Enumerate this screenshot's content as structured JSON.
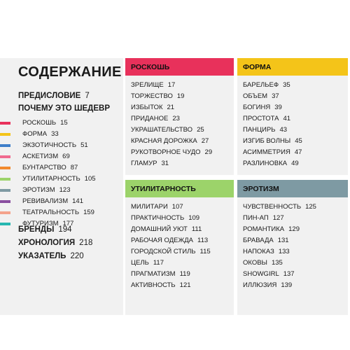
{
  "contents": {
    "title": "СОДЕРЖАНИЕ",
    "entries": [
      {
        "label": "ПРЕДИСЛОВИЕ",
        "page": "7",
        "type": "main"
      },
      {
        "label": "ПОЧЕМУ ЭТО ШЕДЕВР",
        "page": "",
        "type": "main"
      },
      {
        "label": "РОСКОШЬ",
        "page": "15",
        "type": "sub",
        "color": "#e8315b"
      },
      {
        "label": "ФОРМА",
        "page": "33",
        "type": "sub",
        "color": "#f4c419"
      },
      {
        "label": "ЭКЗОТИЧНОСТЬ",
        "page": "51",
        "type": "sub",
        "color": "#3f7fc9"
      },
      {
        "label": "АСКЕТИЗМ",
        "page": "69",
        "type": "sub",
        "color": "#f06a8f"
      },
      {
        "label": "БУНТАРСТВО",
        "page": "87",
        "type": "sub",
        "color": "#f28a2e"
      },
      {
        "label": "УТИЛИТАРНОСТЬ",
        "page": "105",
        "type": "sub",
        "color": "#9cd36a"
      },
      {
        "label": "ЭРОТИЗМ",
        "page": "123",
        "type": "sub",
        "color": "#7e9aa3"
      },
      {
        "label": "РЕВИВАЛИЗМ",
        "page": "141",
        "type": "sub",
        "color": "#8a4fa0"
      },
      {
        "label": "ТЕАТРАЛЬНОСТЬ",
        "page": "159",
        "type": "sub",
        "color": "#f4a38c"
      },
      {
        "label": "ФУТУРИЗМ",
        "page": "177",
        "type": "sub",
        "color": "#26b7b0"
      },
      {
        "label": "БРЕНДЫ",
        "page": "194",
        "type": "main"
      },
      {
        "label": "ХРОНОЛОГИЯ",
        "page": "218",
        "type": "main"
      },
      {
        "label": "УКАЗАТЕЛЬ",
        "page": "220",
        "type": "main"
      }
    ]
  },
  "sections": [
    {
      "title": "РОСКОШЬ",
      "color": "#e8315b",
      "items": [
        [
          "ЗРЕЛИЩЕ",
          "17"
        ],
        [
          "ТОРЖЕСТВО",
          "19"
        ],
        [
          "ИЗБЫТОК",
          "21"
        ],
        [
          "ПРИДАНОЕ",
          "23"
        ],
        [
          "УКРАШАТЕЛЬСТВО",
          "25"
        ],
        [
          "КРАСНАЯ ДОРОЖКА",
          "27"
        ],
        [
          "РУКОТВОРНОЕ ЧУДО",
          "29"
        ],
        [
          "ГЛАМУР",
          "31"
        ]
      ]
    },
    {
      "title": "ФОРМА",
      "color": "#f4c419",
      "items": [
        [
          "БАРЕЛЬЕФ",
          "35"
        ],
        [
          "ОБЪЕМ",
          "37"
        ],
        [
          "БОГИНЯ",
          "39"
        ],
        [
          "ПРОСТОТА",
          "41"
        ],
        [
          "ПАНЦИРЬ",
          "43"
        ],
        [
          "ИЗГИБ ВОЛНЫ",
          "45"
        ],
        [
          "АСИММЕТРИЯ",
          "47"
        ],
        [
          "РАЗЛИНОВКА",
          "49"
        ]
      ]
    },
    {
      "title": "УТИЛИТАРНОСТЬ",
      "color": "#9cd36a",
      "items": [
        [
          "МИЛИТАРИ",
          "107"
        ],
        [
          "ПРАКТИЧНОСТЬ",
          "109"
        ],
        [
          "ДОМАШНИЙ УЮТ",
          "111"
        ],
        [
          "РАБОЧАЯ ОДЕЖДА",
          "113"
        ],
        [
          "ГОРОДСКОЙ СТИЛЬ",
          "115"
        ],
        [
          "ЦЕЛЬ",
          "117"
        ],
        [
          "ПРАГМАТИЗМ",
          "119"
        ],
        [
          "АКТИВНОСТЬ",
          "121"
        ]
      ]
    },
    {
      "title": "ЭРОТИЗМ",
      "color": "#7e9aa3",
      "items": [
        [
          "ЧУВСТВЕННОСТЬ",
          "125"
        ],
        [
          "ПИН-АП",
          "127"
        ],
        [
          "РОМАНТИКА",
          "129"
        ],
        [
          "БРАВАДА",
          "131"
        ],
        [
          "НАПОКАЗ",
          "133"
        ],
        [
          "ОКОВЫ",
          "135"
        ],
        [
          "SHOWGIRL",
          "137"
        ],
        [
          "ИЛЛЮЗИЯ",
          "139"
        ]
      ]
    }
  ]
}
